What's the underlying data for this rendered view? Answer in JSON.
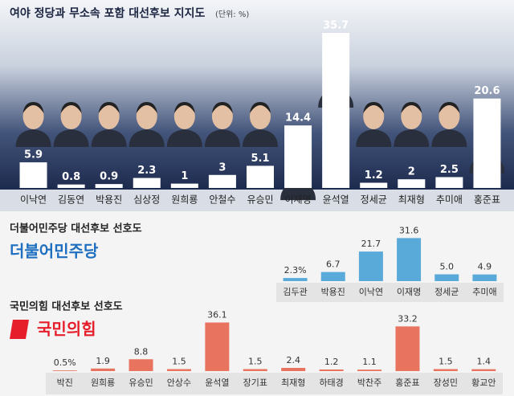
{
  "chart_data": [
    {
      "type": "bar",
      "title": "여야 정당과 무소속 포함 대선후보 지지도",
      "subtitle": "(단위: %)",
      "categories": [
        "이낙연",
        "김동연",
        "박용진",
        "심상정",
        "원희룡",
        "안철수",
        "유승민",
        "이재명",
        "윤석열",
        "정세균",
        "최재형",
        "추미애",
        "홍준표"
      ],
      "values": [
        5.9,
        0.8,
        0.9,
        2.3,
        1.0,
        3.0,
        5.1,
        14.4,
        35.7,
        1.2,
        2.0,
        2.5,
        20.6
      ],
      "color": "#ffffff",
      "ylim": [
        0,
        37
      ]
    },
    {
      "type": "bar",
      "title": "더불어민주당 대선후보 선호도",
      "logo": "더불어민주당",
      "categories": [
        "김두관",
        "박용진",
        "이낙연",
        "이재명",
        "정세균",
        "추미애"
      ],
      "values": [
        2.3,
        6.7,
        21.7,
        31.6,
        5.0,
        4.9
      ],
      "value_labels": [
        "2.3%",
        "6.7",
        "21.7",
        "31.6",
        "5.0",
        "4.9"
      ],
      "color": "#5aaad9",
      "ylim": [
        0,
        33
      ]
    },
    {
      "type": "bar",
      "title": "국민의힘 대선후보 선호도",
      "logo": "국민의힘",
      "categories": [
        "박진",
        "원희룡",
        "유승민",
        "안상수",
        "윤석열",
        "장기표",
        "최재형",
        "하태경",
        "박찬주",
        "홍준표",
        "장성민",
        "황교안"
      ],
      "values": [
        0.5,
        1.9,
        8.8,
        1.5,
        36.1,
        1.5,
        2.4,
        1.2,
        1.1,
        33.2,
        1.5,
        1.4
      ],
      "value_labels": [
        "0.5%",
        "1.9",
        "8.8",
        "1.5",
        "36.1",
        "1.5",
        "2.4",
        "1.2",
        "1.1",
        "33.2",
        "1.5",
        "1.4"
      ],
      "color": "#e8735f",
      "ylim": [
        0,
        37
      ]
    }
  ]
}
